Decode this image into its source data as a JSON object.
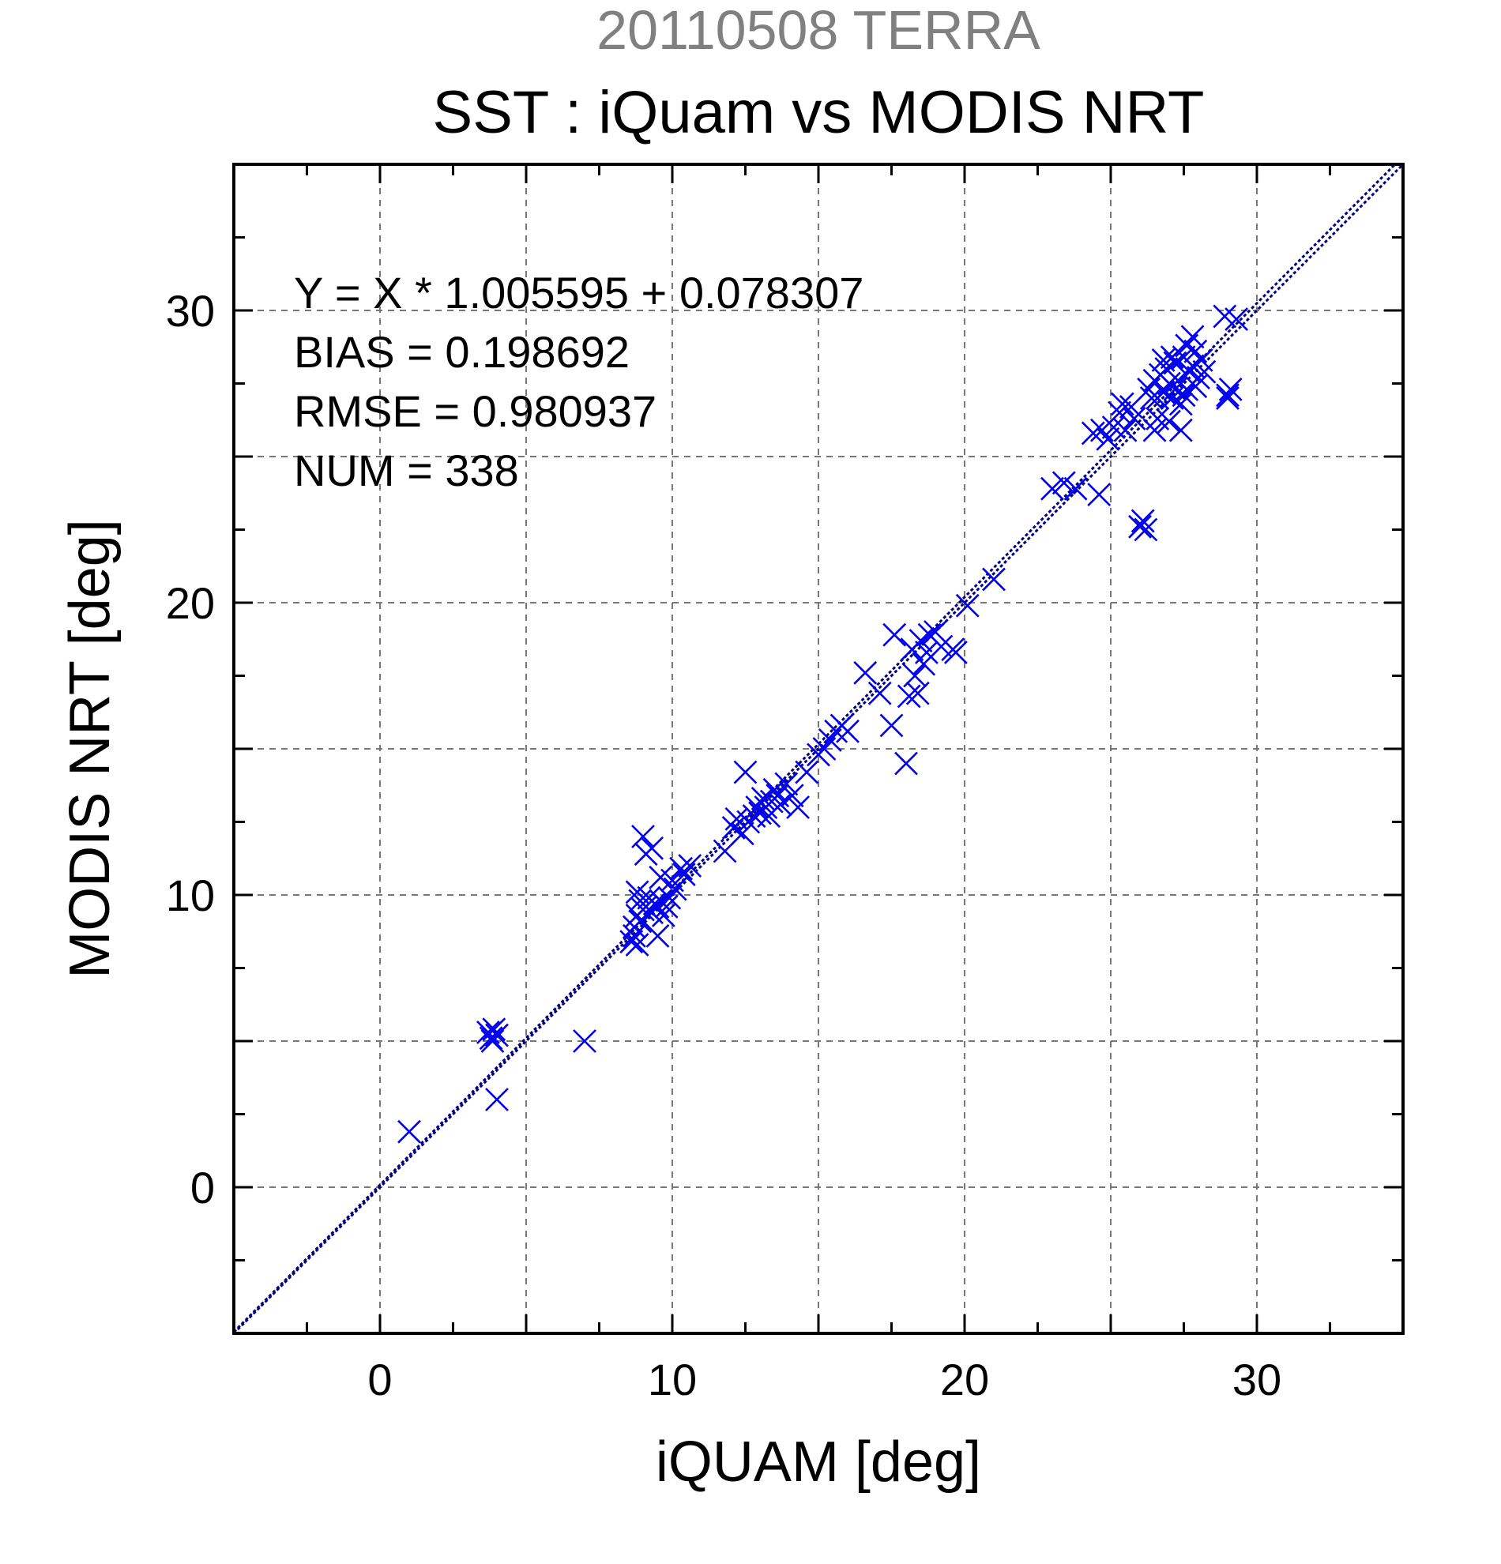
{
  "chart_data": {
    "type": "scatter",
    "title": "20110508 TERRA",
    "subtitle": "SST : iQuam vs MODIS NRT",
    "xlabel": "iQUAM [deg]",
    "ylabel": "MODIS NRT [deg]",
    "xlim": [
      -5,
      35
    ],
    "ylim": [
      -5,
      35
    ],
    "xticks": [
      0,
      10,
      20,
      30
    ],
    "yticks": [
      0,
      10,
      20,
      30
    ],
    "grid": true,
    "stats_lines": [
      "Y = X * 1.005595 + 0.078307",
      "BIAS = 0.198692",
      "RMSE = 0.980937",
      "NUM = 338"
    ],
    "fit": {
      "slope": 1.005595,
      "intercept": 0.078307
    },
    "colors": {
      "marker": "#0000ee",
      "line": "#000080",
      "title": "#808080",
      "text": "#000000",
      "grid": "#777777"
    },
    "points": [
      [
        1.0,
        1.9
      ],
      [
        3.7,
        5.3
      ],
      [
        3.8,
        5.1
      ],
      [
        3.9,
        5.4
      ],
      [
        4.0,
        5.2
      ],
      [
        3.85,
        5.0
      ],
      [
        4.0,
        3.0
      ],
      [
        7.0,
        5.0
      ],
      [
        8.6,
        8.4
      ],
      [
        8.7,
        8.6
      ],
      [
        8.8,
        8.3
      ],
      [
        8.7,
        8.9
      ],
      [
        8.9,
        9.1
      ],
      [
        8.8,
        9.3
      ],
      [
        9.0,
        9.5
      ],
      [
        8.9,
        9.8
      ],
      [
        8.8,
        10.1
      ],
      [
        9.1,
        9.6
      ],
      [
        9.2,
        9.9
      ],
      [
        9.3,
        9.4
      ],
      [
        9.4,
        9.7
      ],
      [
        9.5,
        9.6
      ],
      [
        9.6,
        9.8
      ],
      [
        9.7,
        9.3
      ],
      [
        9.8,
        9.6
      ],
      [
        9.5,
        8.6
      ],
      [
        9.1,
        11.4
      ],
      [
        9.0,
        12.0
      ],
      [
        9.3,
        11.6
      ],
      [
        9.6,
        10.6
      ],
      [
        9.9,
        9.9
      ],
      [
        10.1,
        10.2
      ],
      [
        10.0,
        10.5
      ],
      [
        10.3,
        10.9
      ],
      [
        10.4,
        10.7
      ],
      [
        10.6,
        11.0
      ],
      [
        11.8,
        11.5
      ],
      [
        12.1,
        12.3
      ],
      [
        12.2,
        12.6
      ],
      [
        12.4,
        12.1
      ],
      [
        12.6,
        12.5
      ],
      [
        12.8,
        12.7
      ],
      [
        12.5,
        14.2
      ],
      [
        12.9,
        13.0
      ],
      [
        13.0,
        12.8
      ],
      [
        13.1,
        13.3
      ],
      [
        13.2,
        13.0
      ],
      [
        13.3,
        12.7
      ],
      [
        13.4,
        13.2
      ],
      [
        13.5,
        13.6
      ],
      [
        13.6,
        13.4
      ],
      [
        13.7,
        13.1
      ],
      [
        13.9,
        13.8
      ],
      [
        14.1,
        13.4
      ],
      [
        14.3,
        13.0
      ],
      [
        14.6,
        14.2
      ],
      [
        15.0,
        14.8
      ],
      [
        15.2,
        15.0
      ],
      [
        15.4,
        15.3
      ],
      [
        15.6,
        15.6
      ],
      [
        15.8,
        15.8
      ],
      [
        16.0,
        15.6
      ],
      [
        16.6,
        17.6
      ],
      [
        17.1,
        16.9
      ],
      [
        17.5,
        15.8
      ],
      [
        17.6,
        18.9
      ],
      [
        18.0,
        14.5
      ],
      [
        18.1,
        16.8
      ],
      [
        18.2,
        18.4
      ],
      [
        18.3,
        17.5
      ],
      [
        18.4,
        16.9
      ],
      [
        18.5,
        18.7
      ],
      [
        18.6,
        17.9
      ],
      [
        18.7,
        18.3
      ],
      [
        18.8,
        18.9
      ],
      [
        19.0,
        19.0
      ],
      [
        19.2,
        18.5
      ],
      [
        19.6,
        18.4
      ],
      [
        19.7,
        18.3
      ],
      [
        20.1,
        19.9
      ],
      [
        21.0,
        20.8
      ],
      [
        23.0,
        23.9
      ],
      [
        23.4,
        24.1
      ],
      [
        23.8,
        23.9
      ],
      [
        24.4,
        25.8
      ],
      [
        24.6,
        23.7
      ],
      [
        24.7,
        25.9
      ],
      [
        24.9,
        25.6
      ],
      [
        25.1,
        26.0
      ],
      [
        25.3,
        26.5
      ],
      [
        25.4,
        26.8
      ],
      [
        25.5,
        25.9
      ],
      [
        25.7,
        26.7
      ],
      [
        25.8,
        26.3
      ],
      [
        26.0,
        22.6
      ],
      [
        26.1,
        22.8
      ],
      [
        26.2,
        22.5
      ],
      [
        26.3,
        27.3
      ],
      [
        26.4,
        27.0
      ],
      [
        26.5,
        27.6
      ],
      [
        26.6,
        26.3
      ],
      [
        26.7,
        27.8
      ],
      [
        26.8,
        27.2
      ],
      [
        26.9,
        28.0
      ],
      [
        27.0,
        27.5
      ],
      [
        27.1,
        27.0
      ],
      [
        27.2,
        28.2
      ],
      [
        27.3,
        27.6
      ],
      [
        27.4,
        26.8
      ],
      [
        27.5,
        28.4
      ],
      [
        27.6,
        27.3
      ],
      [
        27.7,
        27.9
      ],
      [
        27.8,
        28.1
      ],
      [
        27.9,
        28.6
      ],
      [
        28.0,
        27.7
      ],
      [
        28.1,
        28.3
      ],
      [
        26.5,
        25.9
      ],
      [
        27.0,
        26.2
      ],
      [
        27.4,
        25.9
      ],
      [
        26.8,
        28.3
      ],
      [
        27.1,
        28.4
      ],
      [
        27.6,
        28.8
      ],
      [
        27.8,
        29.1
      ],
      [
        26.6,
        27.0
      ],
      [
        27.2,
        27.3
      ],
      [
        27.5,
        27.1
      ],
      [
        27.9,
        27.4
      ],
      [
        28.2,
        27.9
      ],
      [
        29.0,
        27.1
      ],
      [
        29.1,
        27.3
      ],
      [
        29.0,
        27.0
      ],
      [
        28.9,
        29.8
      ],
      [
        29.3,
        29.7
      ]
    ]
  }
}
